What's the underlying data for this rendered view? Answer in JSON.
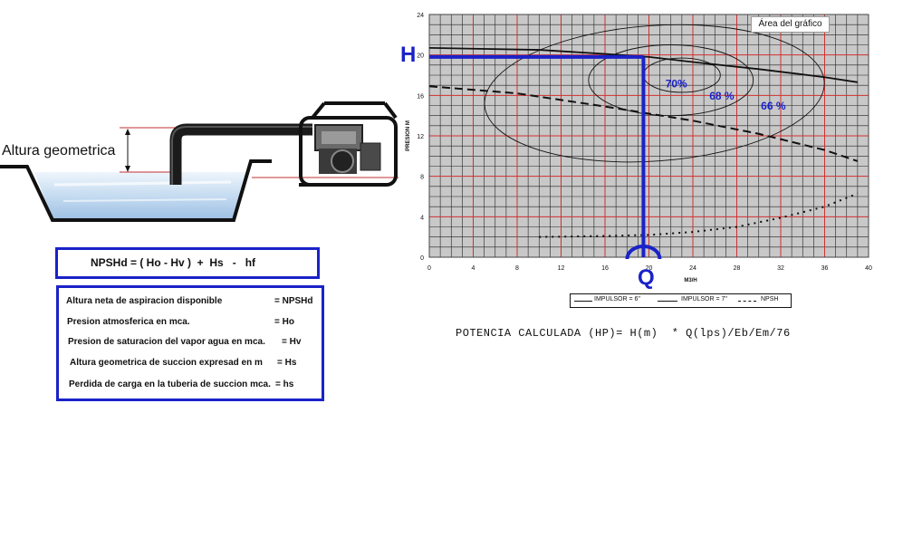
{
  "diagram": {
    "altura_label": "Altura geometrica"
  },
  "formula": {
    "text": "NPSHd = ( Ho - Hv )  +  Hs   -   hf"
  },
  "legend": {
    "rows": [
      {
        "label": "Altura neta de aspiracion disponible",
        "symbol": "= NPSHd"
      },
      {
        "label": "Presion atmosferica      en  mca.",
        "symbol": "= Ho"
      },
      {
        "label": "Presion de saturacion del vapor agua en mca.",
        "symbol": "= Hv"
      },
      {
        "label": "Altura geometrica de succion expresad en m",
        "symbol": "= Hs"
      },
      {
        "label": "Perdida de carga en la tuberia de succion  mca.",
        "symbol": "= hs"
      }
    ]
  },
  "chart_labels": {
    "tooltip": "Área del gráfico",
    "h_marker": "H",
    "q_marker": "Q"
  },
  "chart_data": {
    "type": "line",
    "xlabel": "M3/H",
    "ylabel": "PRESION M",
    "xlim": [
      0,
      40
    ],
    "ylim": [
      0,
      24
    ],
    "x_ticks": [
      "0",
      "4",
      "8",
      "12",
      "16",
      "20",
      "24",
      "28",
      "32",
      "36",
      "40"
    ],
    "y_ticks": [
      "0",
      "4",
      "8",
      "12",
      "16",
      "20",
      "24"
    ],
    "grid": true,
    "series": [
      {
        "name": "IMPULSOR = 6\"",
        "style": "dashed",
        "x": [
          0,
          8,
          16,
          20,
          24,
          30,
          36,
          39
        ],
        "y": [
          16.9,
          16.2,
          14.9,
          14.2,
          13.5,
          12.2,
          10.6,
          9.5
        ]
      },
      {
        "name": "IMPULSOR = 7\"",
        "style": "solid",
        "x": [
          0,
          10,
          16,
          20,
          24,
          30,
          36,
          39
        ],
        "y": [
          20.7,
          20.5,
          20.1,
          19.8,
          19.3,
          18.6,
          17.8,
          17.3
        ]
      },
      {
        "name": "NPSH",
        "style": "dotted",
        "x": [
          10,
          16,
          20,
          24,
          28,
          32,
          36,
          39
        ],
        "y": [
          2.0,
          2.1,
          2.2,
          2.5,
          3.0,
          3.9,
          5.0,
          6.3
        ]
      }
    ],
    "efficiency_labels": [
      "70%",
      "68 %",
      "66 %"
    ],
    "operating_point": {
      "x": 19.5,
      "y": 19.8
    },
    "legend": {
      "placement": "bottom",
      "entries": [
        "IMPULSOR = 6\"",
        "IMPULSOR = 7\"",
        "NPSH"
      ]
    }
  },
  "potencia": {
    "text": "POTENCIA CALCULADA (HP)= H(m)  * Q(lps)/Eb/Em/76"
  },
  "colors": {
    "accent_blue": "#1a22c8",
    "grid_red": "#d03030",
    "plot_bg": "#c8c8c8"
  }
}
